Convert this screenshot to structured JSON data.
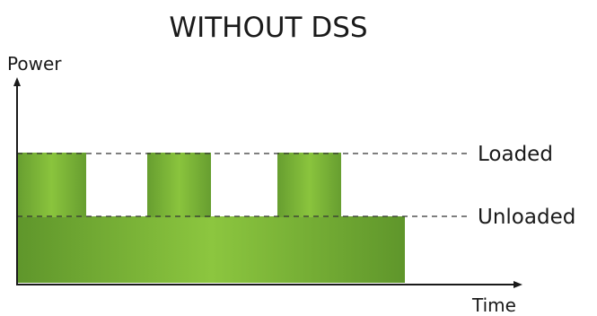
{
  "title": "WITHOUT DSS",
  "y_axis_label": "Power",
  "x_axis_label": "Time",
  "levels": {
    "loaded": "Loaded",
    "unloaded": "Unloaded"
  },
  "colors": {
    "green_dark": "#5c9428",
    "green_light": "#8cc63f",
    "axis": "#1a1a1a",
    "dashed": "#333333"
  }
}
